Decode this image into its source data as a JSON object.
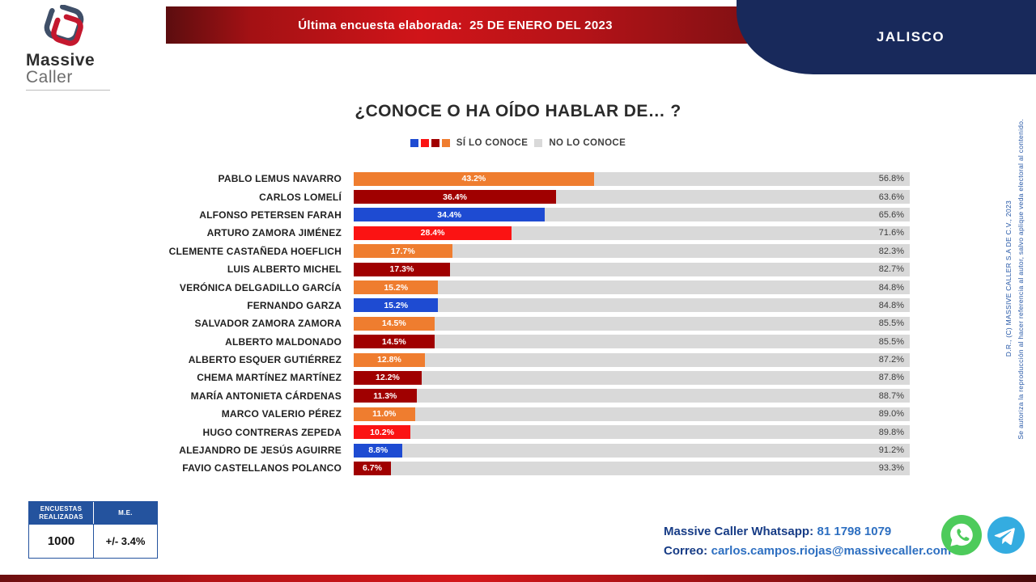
{
  "header": {
    "survey_label": "Última encuesta elaborada:",
    "survey_date": "25 DE ENERO DEL 2023",
    "region": "JALISCO"
  },
  "logo": {
    "name_line1": "Massive",
    "name_line2": "Caller"
  },
  "chart": {
    "title": "¿CONOCE O HA OÍDO HABLAR DE… ?",
    "legend": {
      "yes_label": "SÍ LO CONOCE",
      "no_label": "NO LO CONOCE",
      "yes_colors": [
        "#1E4BD2",
        "#FB1313",
        "#A00000",
        "#EF7D2F"
      ],
      "no_color": "#D9D9D9"
    }
  },
  "chart_data": {
    "type": "bar",
    "orientation": "horizontal",
    "stacked": true,
    "title": "¿CONOCE O HA OÍDO HABLAR DE… ?",
    "xlim": [
      0,
      100
    ],
    "value_suffix": "%",
    "legend_position": "top",
    "categories": [
      "PABLO LEMUS NAVARRO",
      "CARLOS LOMELÍ",
      "ALFONSO PETERSEN FARAH",
      "ARTURO ZAMORA JIMÉNEZ",
      "CLEMENTE CASTAÑEDA HOEFLICH",
      "LUIS ALBERTO MICHEL",
      "VERÓNICA DELGADILLO GARCÍA",
      "FERNANDO GARZA",
      "SALVADOR ZAMORA ZAMORA",
      "ALBERTO MALDONADO",
      "ALBERTO ESQUER GUTIÉRREZ",
      "CHEMA MARTÍNEZ MARTÍNEZ",
      "MARÍA ANTONIETA CÁRDENAS",
      "MARCO VALERIO PÉREZ",
      "HUGO CONTRERAS ZEPEDA",
      "ALEJANDRO DE JESÚS AGUIRRE",
      "FAVIO CASTELLANOS POLANCO"
    ],
    "series": [
      {
        "name": "SÍ LO CONOCE",
        "values": [
          43.2,
          36.4,
          34.4,
          28.4,
          17.7,
          17.3,
          15.2,
          15.2,
          14.5,
          14.5,
          12.8,
          12.2,
          11.3,
          11.0,
          10.2,
          8.8,
          6.7
        ]
      },
      {
        "name": "NO LO CONOCE",
        "values": [
          56.8,
          63.6,
          65.6,
          71.6,
          82.3,
          82.7,
          84.8,
          84.8,
          85.5,
          85.5,
          87.2,
          87.8,
          88.7,
          89.0,
          89.8,
          91.2,
          93.3
        ]
      }
    ],
    "bar_colors": [
      "#EF7D2F",
      "#A00000",
      "#1E4BD2",
      "#FB1313",
      "#EF7D2F",
      "#A00000",
      "#EF7D2F",
      "#1E4BD2",
      "#EF7D2F",
      "#A00000",
      "#EF7D2F",
      "#A00000",
      "#A00000",
      "#EF7D2F",
      "#FB1313",
      "#1E4BD2",
      "#A00000"
    ],
    "track_color": "#D9D9D9"
  },
  "footer": {
    "stats": {
      "col1_header": "ENCUESTAS REALIZADAS",
      "col2_header": "M.E.",
      "col1_value": "1000",
      "col2_value": "+/- 3.4%"
    },
    "whatsapp_label": "Massive Caller Whatsapp:",
    "whatsapp_number": "81 1798 1079",
    "email_label": "Correo:",
    "email_value": "carlos.campos.riojas@massivecaller.com"
  },
  "side_note": {
    "copyright": "D.R., (C) MASSIVE CALLER S.A DE C.V., 2023",
    "disclaimer": "Se autoriza la reproducción al hacer referencia al autor, salvo aplique veda electoral al contenido."
  }
}
